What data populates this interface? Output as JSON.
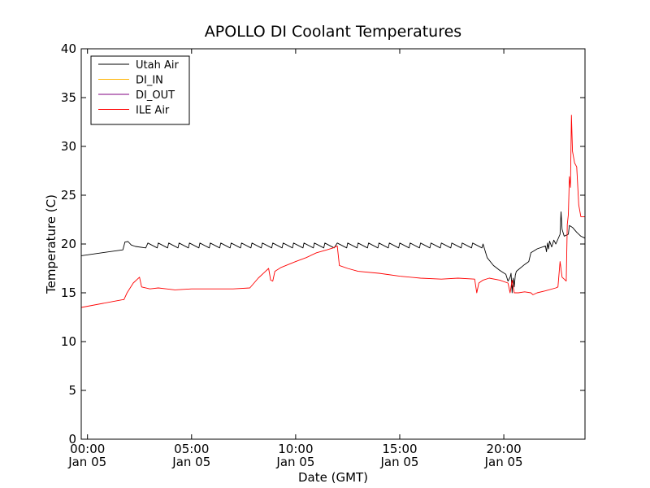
{
  "chart_data": {
    "type": "line",
    "title": "APOLLO DI Coolant Temperatures",
    "xlabel": "Date (GMT)",
    "ylabel": "Temperature (C)",
    "xlim": [
      -0.3,
      23.9
    ],
    "ylim": [
      0,
      40
    ],
    "x_unit": "hours since 00:00 Jan 05",
    "yticks": [
      0,
      5,
      10,
      15,
      20,
      25,
      30,
      35,
      40
    ],
    "xticks": [
      {
        "x": 0,
        "line1": "00:00",
        "line2": "Jan 05"
      },
      {
        "x": 5,
        "line1": "05:00",
        "line2": "Jan 05"
      },
      {
        "x": 10,
        "line1": "10:00",
        "line2": "Jan 05"
      },
      {
        "x": 15,
        "line1": "15:00",
        "line2": "Jan 05"
      },
      {
        "x": 20,
        "line1": "20:00",
        "line2": "Jan 05"
      }
    ],
    "legend_position": "top-left",
    "series": [
      {
        "name": "Utah Air",
        "color": "#000000",
        "points": [
          [
            -0.3,
            18.8
          ],
          [
            1.7,
            19.4
          ],
          [
            1.8,
            20.2
          ],
          [
            1.95,
            20.25
          ],
          [
            2.1,
            19.9
          ],
          [
            2.3,
            19.75
          ],
          [
            2.8,
            19.6
          ],
          [
            2.9,
            20.1
          ],
          [
            3.35,
            19.6
          ],
          [
            3.4,
            20.1
          ],
          [
            3.85,
            19.6
          ],
          [
            3.9,
            20.1
          ],
          [
            4.35,
            19.6
          ],
          [
            4.4,
            20.1
          ],
          [
            4.85,
            19.6
          ],
          [
            4.9,
            20.1
          ],
          [
            5.35,
            19.6
          ],
          [
            5.4,
            20.1
          ],
          [
            5.85,
            19.6
          ],
          [
            5.9,
            20.1
          ],
          [
            6.35,
            19.6
          ],
          [
            6.4,
            20.1
          ],
          [
            6.85,
            19.6
          ],
          [
            6.9,
            20.1
          ],
          [
            7.35,
            19.6
          ],
          [
            7.4,
            20.1
          ],
          [
            7.85,
            19.6
          ],
          [
            7.9,
            20.1
          ],
          [
            8.35,
            19.6
          ],
          [
            8.4,
            20.1
          ],
          [
            8.85,
            19.6
          ],
          [
            8.9,
            20.1
          ],
          [
            9.35,
            19.6
          ],
          [
            9.4,
            20.1
          ],
          [
            9.85,
            19.6
          ],
          [
            9.9,
            20.1
          ],
          [
            10.35,
            19.6
          ],
          [
            10.4,
            20.1
          ],
          [
            10.85,
            19.6
          ],
          [
            10.9,
            20.1
          ],
          [
            11.35,
            19.6
          ],
          [
            11.4,
            20.1
          ],
          [
            11.85,
            19.6
          ],
          [
            12.0,
            20.1
          ],
          [
            12.45,
            19.6
          ],
          [
            12.5,
            20.1
          ],
          [
            12.95,
            19.6
          ],
          [
            13.0,
            20.1
          ],
          [
            13.45,
            19.6
          ],
          [
            13.5,
            20.1
          ],
          [
            13.95,
            19.6
          ],
          [
            14.0,
            20.1
          ],
          [
            14.45,
            19.6
          ],
          [
            14.5,
            20.1
          ],
          [
            14.95,
            19.6
          ],
          [
            15.0,
            20.1
          ],
          [
            15.45,
            19.6
          ],
          [
            15.5,
            20.1
          ],
          [
            15.95,
            19.6
          ],
          [
            16.0,
            20.1
          ],
          [
            16.45,
            19.6
          ],
          [
            16.5,
            20.1
          ],
          [
            16.95,
            19.6
          ],
          [
            17.0,
            20.1
          ],
          [
            17.45,
            19.6
          ],
          [
            17.5,
            20.1
          ],
          [
            17.95,
            19.6
          ],
          [
            18.0,
            20.1
          ],
          [
            18.45,
            19.6
          ],
          [
            18.5,
            20.1
          ],
          [
            18.95,
            19.6
          ],
          [
            19.0,
            20.0
          ],
          [
            19.2,
            18.6
          ],
          [
            19.5,
            17.8
          ],
          [
            19.8,
            17.3
          ],
          [
            20.1,
            16.9
          ],
          [
            20.2,
            16.2
          ],
          [
            20.3,
            16.6
          ],
          [
            20.35,
            17.0
          ],
          [
            20.4,
            15.0
          ],
          [
            20.45,
            16.5
          ],
          [
            20.5,
            15.6
          ],
          [
            20.55,
            16.8
          ],
          [
            20.6,
            17.2
          ],
          [
            21.0,
            17.9
          ],
          [
            21.2,
            18.2
          ],
          [
            21.3,
            19.1
          ],
          [
            21.6,
            19.5
          ],
          [
            22.0,
            19.8
          ],
          [
            22.05,
            19.2
          ],
          [
            22.1,
            20.1
          ],
          [
            22.15,
            19.5
          ],
          [
            22.2,
            20.3
          ],
          [
            22.3,
            19.7
          ],
          [
            22.4,
            20.4
          ],
          [
            22.5,
            20.0
          ],
          [
            22.6,
            20.5
          ],
          [
            22.7,
            21.0
          ],
          [
            22.75,
            23.3
          ],
          [
            22.8,
            21.5
          ],
          [
            22.9,
            20.8
          ],
          [
            23.0,
            20.9
          ],
          [
            23.1,
            21.0
          ],
          [
            23.15,
            21.9
          ],
          [
            23.3,
            21.7
          ],
          [
            23.5,
            21.2
          ],
          [
            23.7,
            20.8
          ],
          [
            23.9,
            20.6
          ]
        ]
      },
      {
        "name": "DI_IN",
        "color": "#ffb300",
        "points": []
      },
      {
        "name": "DI_OUT",
        "color": "#800080",
        "points": []
      },
      {
        "name": "ILE Air",
        "color": "#ff0000",
        "points": [
          [
            -0.3,
            13.5
          ],
          [
            1.7,
            14.3
          ],
          [
            1.75,
            14.3
          ],
          [
            1.9,
            15.0
          ],
          [
            2.2,
            16.0
          ],
          [
            2.5,
            16.6
          ],
          [
            2.6,
            15.6
          ],
          [
            3.0,
            15.4
          ],
          [
            3.4,
            15.5
          ],
          [
            3.8,
            15.4
          ],
          [
            4.2,
            15.3
          ],
          [
            5.0,
            15.4
          ],
          [
            6.0,
            15.4
          ],
          [
            7.0,
            15.4
          ],
          [
            7.8,
            15.5
          ],
          [
            8.2,
            16.5
          ],
          [
            8.5,
            17.1
          ],
          [
            8.7,
            17.5
          ],
          [
            8.8,
            16.3
          ],
          [
            8.9,
            16.2
          ],
          [
            9.0,
            17.2
          ],
          [
            9.3,
            17.6
          ],
          [
            10.0,
            18.2
          ],
          [
            10.5,
            18.6
          ],
          [
            11.0,
            19.1
          ],
          [
            11.5,
            19.4
          ],
          [
            11.8,
            19.6
          ],
          [
            12.0,
            19.8
          ],
          [
            12.1,
            17.8
          ],
          [
            12.5,
            17.5
          ],
          [
            13.0,
            17.2
          ],
          [
            14.0,
            17.0
          ],
          [
            15.0,
            16.7
          ],
          [
            16.0,
            16.5
          ],
          [
            17.0,
            16.4
          ],
          [
            17.8,
            16.5
          ],
          [
            18.6,
            16.4
          ],
          [
            18.7,
            15.0
          ],
          [
            18.8,
            16.0
          ],
          [
            19.0,
            16.3
          ],
          [
            19.3,
            16.5
          ],
          [
            19.8,
            16.3
          ],
          [
            20.2,
            16.0
          ],
          [
            20.3,
            15.0
          ],
          [
            20.4,
            16.3
          ],
          [
            20.5,
            15.0
          ],
          [
            20.7,
            15.0
          ],
          [
            21.0,
            15.1
          ],
          [
            21.3,
            15.0
          ],
          [
            21.4,
            14.8
          ],
          [
            21.6,
            15.0
          ],
          [
            22.0,
            15.2
          ],
          [
            22.5,
            15.5
          ],
          [
            22.6,
            15.6
          ],
          [
            22.7,
            18.2
          ],
          [
            22.8,
            16.6
          ],
          [
            22.9,
            16.4
          ],
          [
            23.0,
            16.2
          ],
          [
            23.05,
            22.0
          ],
          [
            23.1,
            23.0
          ],
          [
            23.15,
            26.9
          ],
          [
            23.2,
            25.8
          ],
          [
            23.25,
            33.2
          ],
          [
            23.3,
            29.5
          ],
          [
            23.4,
            28.3
          ],
          [
            23.5,
            27.9
          ],
          [
            23.6,
            24.0
          ],
          [
            23.7,
            22.8
          ],
          [
            23.9,
            22.8
          ]
        ]
      }
    ]
  }
}
